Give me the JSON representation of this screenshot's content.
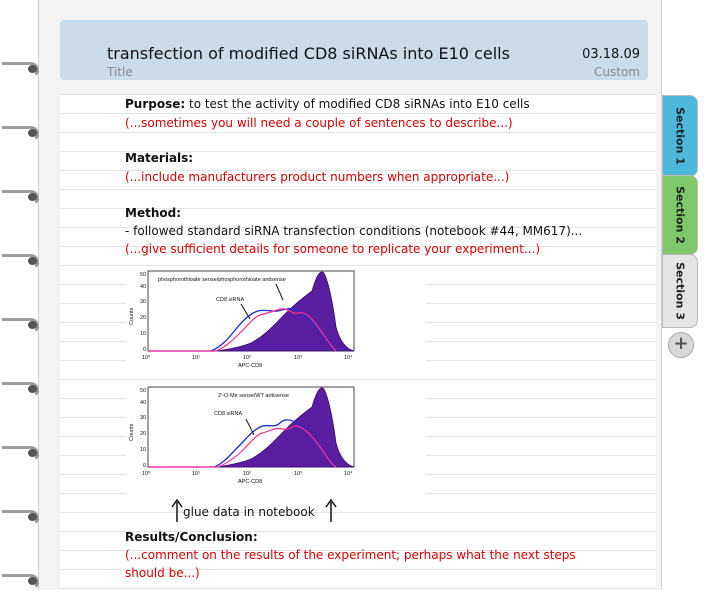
{
  "header": {
    "title": "transfection of modified CD8 siRNAs into E10 cells",
    "date": "03.18.09",
    "title_label": "Title",
    "custom_label": "Custom"
  },
  "notes": {
    "purpose_label": "Purpose:",
    "purpose_text": " to test the activity of modified CD8 siRNAs into E10 cells",
    "purpose_hint": "(...sometimes you will need a couple of sentences to describe...)",
    "materials_label": "Materials:",
    "materials_hint": "(...include manufacturers product numbers when appropriate...)",
    "method_label": "Method:",
    "method_text": "- followed standard siRNA transfection conditions (notebook #44, MM617)...",
    "method_hint": " (...give sufficient details for someone to replicate your experiment...)",
    "glue_text": "glue data in notebook",
    "results_label": "Results/Conclusion:",
    "results_hint_1": "(...comment on the results of the experiment; perhaps what the next steps",
    "results_hint_2": "should be...)"
  },
  "figures": [
    {
      "annotation": "phosphorothioate sense/phosphorothioate antisense",
      "sirna_label": "CD8 siRNA",
      "ylabel": "Counts",
      "xlabel": "APC-CD8",
      "yticks": [
        "0",
        "10",
        "20",
        "30",
        "40",
        "50"
      ],
      "xticks": [
        "10⁰",
        "10¹",
        "10²",
        "10³",
        "10⁴"
      ]
    },
    {
      "annotation": "2'-O-Me sense/WT antisense",
      "sirna_label": "CD8 siRNA",
      "ylabel": "Counts",
      "xlabel": "APC-CD8",
      "yticks": [
        "0",
        "10",
        "20",
        "30",
        "40",
        "50"
      ],
      "xticks": [
        "10⁰",
        "10¹",
        "10²",
        "10³",
        "10⁴"
      ]
    }
  ],
  "tabs": [
    {
      "label": "Section 1",
      "color": "#4db8dc"
    },
    {
      "label": "Section 2",
      "color": "#7ec86a"
    },
    {
      "label": "Section 3",
      "color": "#e4e4e4"
    }
  ],
  "add_tab": "+"
}
